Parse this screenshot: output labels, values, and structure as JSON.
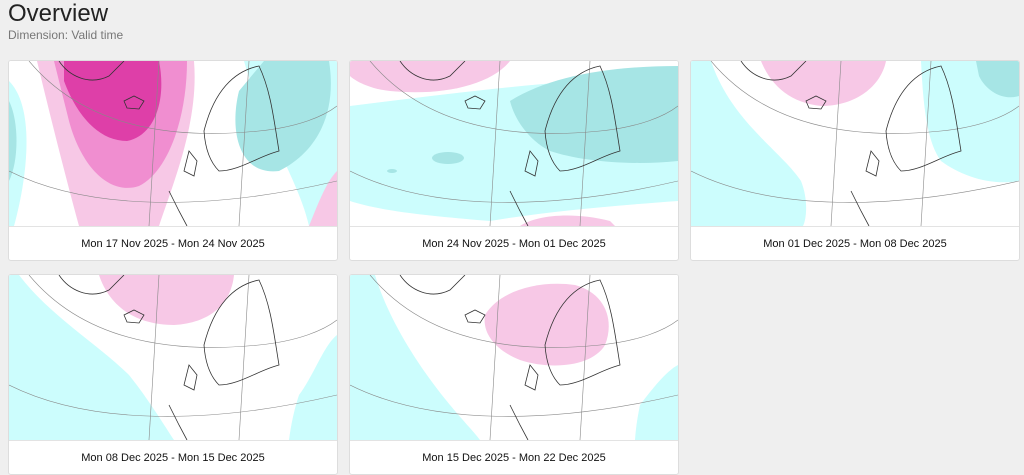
{
  "header": {
    "title": "Overview",
    "subtitle": "Dimension: Valid time"
  },
  "colors": {
    "anomaly_positive_light": "#f7c8e6",
    "anomaly_positive_mid": "#f08ed0",
    "anomaly_positive_strong": "#de3fa8",
    "anomaly_negative_light": "#ccfdfd",
    "anomaly_negative_mid": "#a6e5e5",
    "coastline": "#333333",
    "gridline": "#888888"
  },
  "cards": [
    {
      "label": "Mon 17 Nov 2025 - Mon 24 Nov 2025",
      "pattern": "strong-positive-atlantic"
    },
    {
      "label": "Mon 24 Nov 2025 - Mon 01 Dec 2025",
      "pattern": "negative-north"
    },
    {
      "label": "Mon 01 Dec 2025 - Mon 08 Dec 2025",
      "pattern": "positive-greenland"
    },
    {
      "label": "Mon 08 Dec 2025 - Mon 15 Dec 2025",
      "pattern": "positive-greenland-weak"
    },
    {
      "label": "Mon 15 Dec 2025 - Mon 22 Dec 2025",
      "pattern": "positive-scandinavia"
    }
  ]
}
